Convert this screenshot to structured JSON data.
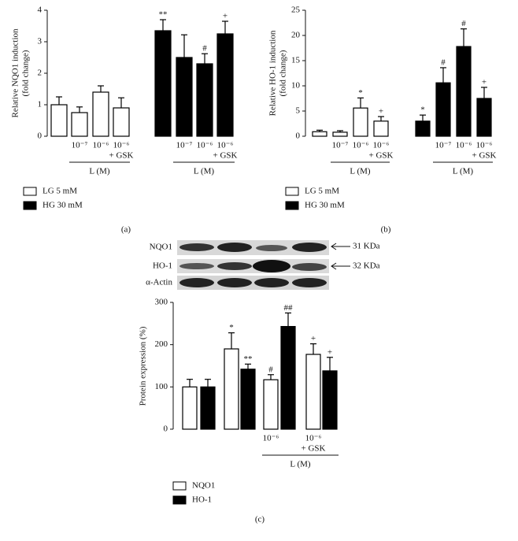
{
  "chart_data": [
    {
      "type": "bar",
      "panel": "(a)",
      "ylabel": [
        "Relative NQO1 induction",
        "(fold change)"
      ],
      "ylim": [
        0,
        4
      ],
      "yticks": [
        0,
        1,
        2,
        3,
        4
      ],
      "categories": [
        null,
        "10⁻⁷",
        "10⁻⁶",
        "10⁻⁶"
      ],
      "category_notes": [
        null,
        null,
        null,
        "+ GSK"
      ],
      "group_label": "L (M)",
      "series": [
        {
          "name": "LG 5 mM",
          "color": "#ffffff",
          "values": [
            1.0,
            0.75,
            1.4,
            0.9
          ],
          "errors": [
            0.25,
            0.18,
            0.2,
            0.32
          ],
          "labels": [
            null,
            null,
            null,
            null
          ]
        },
        {
          "name": "HG 30 mM",
          "color": "#000000",
          "values": [
            3.35,
            2.5,
            2.3,
            3.25
          ],
          "errors": [
            0.35,
            0.72,
            0.32,
            0.4
          ],
          "labels": [
            "**",
            null,
            "#",
            "+"
          ]
        }
      ]
    },
    {
      "type": "bar",
      "panel": "(b)",
      "ylabel": [
        "Relative HO-1 induction",
        "(fold change)"
      ],
      "ylim": [
        0,
        25
      ],
      "yticks": [
        0,
        5,
        10,
        15,
        20,
        25
      ],
      "categories": [
        null,
        "10⁻⁷",
        "10⁻⁶",
        "10⁻⁶"
      ],
      "category_notes": [
        null,
        null,
        null,
        "+ GSK"
      ],
      "group_label": "L (M)",
      "series": [
        {
          "name": "LG 5 mM",
          "color": "#ffffff",
          "values": [
            0.9,
            0.8,
            5.6,
            3.0
          ],
          "errors": [
            0.3,
            0.3,
            2.0,
            0.9
          ],
          "labels": [
            null,
            null,
            "*",
            "+"
          ]
        },
        {
          "name": "HG 30 mM",
          "color": "#000000",
          "values": [
            3.0,
            10.6,
            17.8,
            7.5
          ],
          "errors": [
            1.2,
            3.0,
            3.5,
            2.2
          ],
          "labels": [
            "*",
            "#",
            "#",
            "+"
          ]
        }
      ]
    },
    {
      "type": "bar",
      "panel": "(c)",
      "ylabel": [
        "Protein expression (%)"
      ],
      "ylim": [
        0,
        300
      ],
      "yticks": [
        0,
        100,
        200,
        300
      ],
      "categories": [
        null,
        null,
        "10⁻⁶",
        "10⁻⁶"
      ],
      "category_notes": [
        null,
        null,
        null,
        "+ GSK"
      ],
      "group_label": "L (M)",
      "series": [
        {
          "name": "NQO1",
          "color": "#ffffff",
          "values": [
            100,
            190,
            117,
            177
          ],
          "errors": [
            18,
            38,
            12,
            25
          ],
          "labels": [
            null,
            "*",
            "#",
            "+"
          ]
        },
        {
          "name": "HO-1",
          "color": "#000000",
          "values": [
            100,
            142,
            243,
            138
          ],
          "errors": [
            18,
            12,
            32,
            32
          ],
          "labels": [
            null,
            "**",
            "##",
            "+"
          ]
        }
      ]
    }
  ],
  "blot": {
    "rows": [
      "NQO1",
      "HO-1",
      "α-Actin"
    ],
    "sizes": [
      "31 KDa",
      "32 KDa"
    ]
  }
}
